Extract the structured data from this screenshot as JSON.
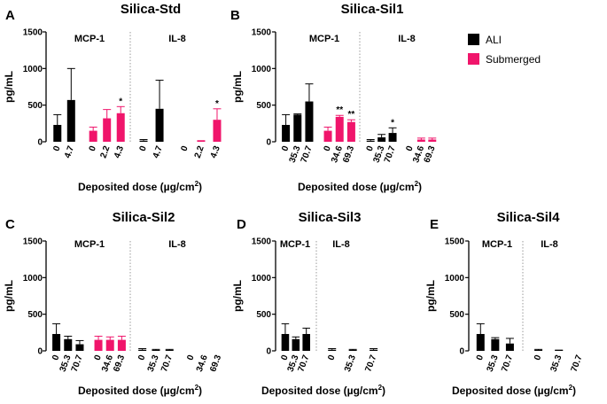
{
  "colors": {
    "ali": "#000000",
    "submerged": "#f0156b",
    "divider": "#9a9a9a"
  },
  "chart_data": [
    {
      "type": "bar",
      "letter": "A",
      "title": "Silica-Std",
      "ylabel": "pg/mL",
      "xlabel": "Deposited dose (µg/cm",
      "xlabel_sup": "2",
      "xlabel_end": ")",
      "ylim": [
        0,
        1500
      ],
      "yticks": [
        "0",
        "500",
        "1000",
        "1500"
      ],
      "groups": [
        "MCP-1",
        "IL-8"
      ],
      "bars": [
        {
          "group": "MCP-1",
          "series": "ALI",
          "category": "0",
          "value": 230,
          "error": 140,
          "sig": ""
        },
        {
          "group": "MCP-1",
          "series": "ALI",
          "category": "4.7",
          "value": 570,
          "error": 430,
          "sig": ""
        },
        {
          "group": "MCP-1",
          "series": "Submerged",
          "category": "0",
          "value": 150,
          "error": 50,
          "sig": ""
        },
        {
          "group": "MCP-1",
          "series": "Submerged",
          "category": "2.2",
          "value": 320,
          "error": 120,
          "sig": ""
        },
        {
          "group": "MCP-1",
          "series": "Submerged",
          "category": "4.3",
          "value": 390,
          "error": 90,
          "sig": "*"
        },
        {
          "group": "IL-8",
          "series": "ALI",
          "category": "0",
          "value": 15,
          "error": 15,
          "sig": ""
        },
        {
          "group": "IL-8",
          "series": "ALI",
          "category": "4.7",
          "value": 450,
          "error": 390,
          "sig": ""
        },
        {
          "group": "IL-8",
          "series": "Submerged",
          "category": "0",
          "value": 0,
          "error": 0,
          "sig": ""
        },
        {
          "group": "IL-8",
          "series": "Submerged",
          "category": "2.2",
          "value": 10,
          "error": 5,
          "sig": ""
        },
        {
          "group": "IL-8",
          "series": "Submerged",
          "category": "4.3",
          "value": 300,
          "error": 150,
          "sig": "*"
        }
      ]
    },
    {
      "type": "bar",
      "letter": "B",
      "title": "Silica-Sil1",
      "ylabel": "pg/mL",
      "xlabel": "Deposited dose (µg/cm",
      "xlabel_sup": "2",
      "xlabel_end": ")",
      "ylim": [
        0,
        1500
      ],
      "yticks": [
        "0",
        "500",
        "1000",
        "1500"
      ],
      "groups": [
        "MCP-1",
        "IL-8"
      ],
      "bars": [
        {
          "group": "MCP-1",
          "series": "ALI",
          "category": "0",
          "value": 230,
          "error": 140,
          "sig": ""
        },
        {
          "group": "MCP-1",
          "series": "ALI",
          "category": "35.3",
          "value": 370,
          "error": 10,
          "sig": ""
        },
        {
          "group": "MCP-1",
          "series": "ALI",
          "category": "70.7",
          "value": 550,
          "error": 240,
          "sig": ""
        },
        {
          "group": "MCP-1",
          "series": "Submerged",
          "category": "0",
          "value": 150,
          "error": 50,
          "sig": ""
        },
        {
          "group": "MCP-1",
          "series": "Submerged",
          "category": "34.6",
          "value": 340,
          "error": 20,
          "sig": "**"
        },
        {
          "group": "MCP-1",
          "series": "Submerged",
          "category": "69.3",
          "value": 270,
          "error": 30,
          "sig": "**"
        },
        {
          "group": "IL-8",
          "series": "ALI",
          "category": "0",
          "value": 15,
          "error": 15,
          "sig": ""
        },
        {
          "group": "IL-8",
          "series": "ALI",
          "category": "35.3",
          "value": 60,
          "error": 40,
          "sig": ""
        },
        {
          "group": "IL-8",
          "series": "ALI",
          "category": "70.7",
          "value": 120,
          "error": 70,
          "sig": "*"
        },
        {
          "group": "IL-8",
          "series": "Submerged",
          "category": "0",
          "value": 0,
          "error": 0,
          "sig": ""
        },
        {
          "group": "IL-8",
          "series": "Submerged",
          "category": "34.6",
          "value": 30,
          "error": 20,
          "sig": ""
        },
        {
          "group": "IL-8",
          "series": "Submerged",
          "category": "69.3",
          "value": 30,
          "error": 20,
          "sig": ""
        }
      ]
    },
    {
      "type": "bar",
      "letter": "C",
      "title": "Silica-Sil2",
      "ylabel": "pg/mL",
      "xlabel": "Deposited dose (µg/cm",
      "xlabel_sup": "2",
      "xlabel_end": ")",
      "ylim": [
        0,
        1500
      ],
      "yticks": [
        "0",
        "500",
        "1000",
        "1500"
      ],
      "groups": [
        "MCP-1",
        "IL-8"
      ],
      "bars": [
        {
          "group": "MCP-1",
          "series": "ALI",
          "category": "0",
          "value": 230,
          "error": 140,
          "sig": ""
        },
        {
          "group": "MCP-1",
          "series": "ALI",
          "category": "35.3",
          "value": 160,
          "error": 40,
          "sig": ""
        },
        {
          "group": "MCP-1",
          "series": "ALI",
          "category": "70.7",
          "value": 90,
          "error": 50,
          "sig": ""
        },
        {
          "group": "MCP-1",
          "series": "Submerged",
          "category": "0",
          "value": 150,
          "error": 50,
          "sig": ""
        },
        {
          "group": "MCP-1",
          "series": "Submerged",
          "category": "34.6",
          "value": 150,
          "error": 40,
          "sig": ""
        },
        {
          "group": "MCP-1",
          "series": "Submerged",
          "category": "69.3",
          "value": 150,
          "error": 50,
          "sig": ""
        },
        {
          "group": "IL-8",
          "series": "ALI",
          "category": "0",
          "value": 15,
          "error": 15,
          "sig": ""
        },
        {
          "group": "IL-8",
          "series": "ALI",
          "category": "35.3",
          "value": 10,
          "error": 10,
          "sig": ""
        },
        {
          "group": "IL-8",
          "series": "ALI",
          "category": "70.7",
          "value": 10,
          "error": 10,
          "sig": ""
        },
        {
          "group": "IL-8",
          "series": "Submerged",
          "category": "0",
          "value": 0,
          "error": 0,
          "sig": ""
        },
        {
          "group": "IL-8",
          "series": "Submerged",
          "category": "34.6",
          "value": 0,
          "error": 0,
          "sig": ""
        },
        {
          "group": "IL-8",
          "series": "Submerged",
          "category": "69.3",
          "value": 0,
          "error": 0,
          "sig": ""
        }
      ]
    },
    {
      "type": "bar",
      "letter": "D",
      "title": "Silica-Sil3",
      "ylabel": "pg/mL",
      "xlabel": "Deposited dose (µg/cm",
      "xlabel_sup": "2",
      "xlabel_end": ")",
      "ylim": [
        0,
        1500
      ],
      "yticks": [
        "0",
        "500",
        "1000",
        "1500"
      ],
      "groups": [
        "MCP-1",
        "IL-8"
      ],
      "bars": [
        {
          "group": "MCP-1",
          "series": "ALI",
          "category": "0",
          "value": 230,
          "error": 140,
          "sig": ""
        },
        {
          "group": "MCP-1",
          "series": "ALI",
          "category": "35.3",
          "value": 160,
          "error": 30,
          "sig": ""
        },
        {
          "group": "MCP-1",
          "series": "ALI",
          "category": "70.7",
          "value": 230,
          "error": 80,
          "sig": ""
        },
        {
          "group": "IL-8",
          "series": "ALI",
          "category": "0",
          "value": 15,
          "error": 15,
          "sig": ""
        },
        {
          "group": "IL-8",
          "series": "ALI",
          "category": "35.3",
          "value": 10,
          "error": 10,
          "sig": ""
        },
        {
          "group": "IL-8",
          "series": "ALI",
          "category": "70.7",
          "value": 15,
          "error": 15,
          "sig": ""
        }
      ]
    },
    {
      "type": "bar",
      "letter": "E",
      "title": "Silica-Sil4",
      "ylabel": "pg/mL",
      "xlabel": "Deposited dose (µg/cm",
      "xlabel_sup": "2",
      "xlabel_end": ")",
      "ylim": [
        0,
        1500
      ],
      "yticks": [
        "0",
        "500",
        "1000",
        "1500"
      ],
      "groups": [
        "MCP-1",
        "IL-8"
      ],
      "bars": [
        {
          "group": "MCP-1",
          "series": "ALI",
          "category": "0",
          "value": 230,
          "error": 140,
          "sig": ""
        },
        {
          "group": "MCP-1",
          "series": "ALI",
          "category": "35.3",
          "value": 160,
          "error": 20,
          "sig": ""
        },
        {
          "group": "MCP-1",
          "series": "ALI",
          "category": "70.7",
          "value": 100,
          "error": 70,
          "sig": ""
        },
        {
          "group": "IL-8",
          "series": "ALI",
          "category": "0",
          "value": 10,
          "error": 10,
          "sig": ""
        },
        {
          "group": "IL-8",
          "series": "ALI",
          "category": "35.3",
          "value": 5,
          "error": 5,
          "sig": ""
        },
        {
          "group": "IL-8",
          "series": "ALI",
          "category": "70.7",
          "value": 0,
          "error": 0,
          "sig": ""
        }
      ]
    }
  ],
  "legend": [
    {
      "label": "ALI",
      "color": "#000000"
    },
    {
      "label": "Submerged",
      "color": "#f0156b"
    }
  ]
}
